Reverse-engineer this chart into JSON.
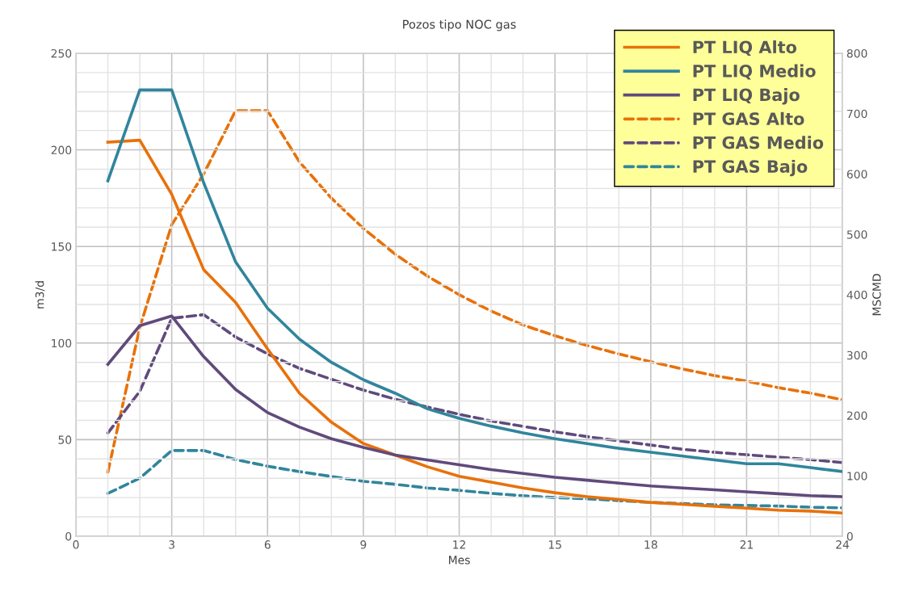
{
  "chart_data": {
    "type": "line",
    "title": "Pozos tipo NOC gas",
    "xlabel": "Mes",
    "ylabel": "m3/d",
    "y2label": "MSCMD",
    "x": [
      1,
      2,
      3,
      4,
      5,
      6,
      7,
      8,
      9,
      10,
      11,
      12,
      13,
      14,
      15,
      16,
      17,
      18,
      19,
      20,
      21,
      22,
      23,
      24
    ],
    "series": [
      {
        "name": "PT LIQ Alto",
        "color": "#e8710a",
        "line_style": "solid",
        "values": [
          204,
          205,
          177,
          138,
          121,
          97,
          74,
          59,
          48,
          42,
          36,
          31,
          28,
          25,
          22.5,
          20.5,
          19,
          17.5,
          16.5,
          15.5,
          14.5,
          13.5,
          13,
          12
        ]
      },
      {
        "name": "PT LIQ Medio",
        "color": "#31859c",
        "line_style": "solid",
        "values": [
          184,
          231,
          231,
          183,
          142,
          118,
          102,
          90,
          81,
          74,
          66,
          61,
          57,
          53.5,
          50.5,
          48,
          45.5,
          43.5,
          41.5,
          39.5,
          37.5,
          37.5,
          35.5,
          33.5
        ]
      },
      {
        "name": "PT LIQ Bajo",
        "color": "#604a7b",
        "line_style": "solid",
        "values": [
          89,
          109,
          114,
          93,
          76,
          64,
          56.5,
          50.5,
          46,
          42,
          39.5,
          37,
          34.5,
          32.5,
          30.5,
          29,
          27.5,
          26,
          25,
          24,
          23,
          22,
          21,
          20.5
        ]
      },
      {
        "name": "PT GAS Alto",
        "color": "#e8710a",
        "line_style": "dashed",
        "axis": "y2",
        "values": [
          106,
          346,
          516,
          600,
          705,
          705,
          620,
          560,
          510,
          467,
          431,
          400,
          373,
          350,
          332,
          316,
          302,
          289,
          277,
          266,
          257,
          246,
          237,
          226
        ]
      },
      {
        "name": "PT GAS Medio",
        "color": "#604a7b",
        "line_style": "dashed",
        "axis": "y2",
        "values": [
          171,
          240,
          361,
          367,
          330,
          302,
          278,
          260,
          242,
          227,
          214,
          202,
          191,
          182,
          173,
          165,
          158,
          151,
          144,
          139,
          135,
          131,
          127,
          122
        ]
      },
      {
        "name": "PT GAS Bajo",
        "color": "#31859c",
        "line_style": "dashed",
        "axis": "y2",
        "values": [
          71,
          96,
          142,
          142,
          127,
          116,
          107,
          99,
          91,
          86,
          80,
          76,
          71,
          67,
          64,
          62,
          59,
          56,
          54,
          52,
          51,
          50,
          48,
          47
        ]
      }
    ],
    "xlim": [
      0,
      24
    ],
    "xticks": [
      0,
      3,
      6,
      9,
      12,
      15,
      18,
      21,
      24
    ],
    "ylim": [
      0,
      250
    ],
    "yticks": [
      0,
      50,
      100,
      150,
      200,
      250
    ],
    "y2lim": [
      0,
      800
    ],
    "y2ticks": [
      0,
      100,
      200,
      300,
      400,
      500,
      600,
      700,
      800
    ],
    "grid": true,
    "legend": "top right",
    "marker": "none"
  }
}
